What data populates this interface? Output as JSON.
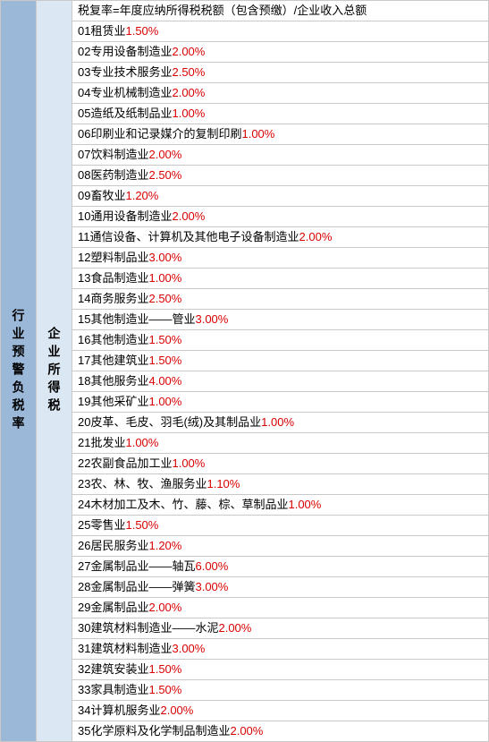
{
  "left_header": "行业预警负税率",
  "mid_header": "企业所得税",
  "formula": "税复率=年度应纳所得税税额（包含预缴）/企业收入总额",
  "rate_color": "#d90000",
  "border_color": "#c9c9c9",
  "left_bg": "#9bb8d9",
  "mid_bg": "#dbe7f3",
  "font_size": 13,
  "rows": [
    {
      "num": "01",
      "name": "租赁业",
      "rate": "1.50%"
    },
    {
      "num": "02",
      "name": "专用设备制造业",
      "rate": "2.00%"
    },
    {
      "num": "03",
      "name": "专业技术服务业",
      "rate": "2.50%"
    },
    {
      "num": "04",
      "name": "专业机械制造业",
      "rate": "2.00%"
    },
    {
      "num": "05",
      "name": "造纸及纸制品业",
      "rate": "1.00%"
    },
    {
      "num": "06",
      "name": "印刷业和记录媒介的复制印刷",
      "rate": "1.00%"
    },
    {
      "num": "07",
      "name": "饮料制造业",
      "rate": "2.00%"
    },
    {
      "num": "08",
      "name": "医药制造业",
      "rate": "2.50%"
    },
    {
      "num": "09",
      "name": "畜牧业",
      "rate": "1.20%"
    },
    {
      "num": "10",
      "name": "通用设备制造业",
      "rate": "2.00%"
    },
    {
      "num": "11",
      "name": "通信设备、计算机及其他电子设备制造业",
      "rate": "2.00%"
    },
    {
      "num": "12",
      "name": "塑料制品业",
      "rate": "3.00%"
    },
    {
      "num": "13",
      "name": "食品制造业",
      "rate": "1.00%"
    },
    {
      "num": "14",
      "name": "商务服务业",
      "rate": "2.50%"
    },
    {
      "num": "15",
      "name": "其他制造业——管业",
      "rate": "3.00%"
    },
    {
      "num": "16",
      "name": "其他制造业",
      "rate": "1.50%"
    },
    {
      "num": "17",
      "name": "其他建筑业",
      "rate": "1.50%"
    },
    {
      "num": "18",
      "name": "其他服务业",
      "rate": "4.00%"
    },
    {
      "num": "19",
      "name": "其他采矿业",
      "rate": "1.00%"
    },
    {
      "num": "20",
      "name": "皮革、毛皮、羽毛(绒)及其制品业",
      "rate": "1.00%"
    },
    {
      "num": "21",
      "name": "批发业",
      "rate": "1.00%"
    },
    {
      "num": "22",
      "name": "农副食品加工业",
      "rate": "1.00%"
    },
    {
      "num": "23",
      "name": "农、林、牧、渔服务业",
      "rate": "1.10%"
    },
    {
      "num": "24",
      "name": "木材加工及木、竹、藤、棕、草制品业",
      "rate": "1.00%"
    },
    {
      "num": "25",
      "name": "零售业",
      "rate": "1.50%"
    },
    {
      "num": "26",
      "name": "居民服务业",
      "rate": "1.20%"
    },
    {
      "num": "27",
      "name": "金属制品业——轴瓦",
      "rate": "6.00%"
    },
    {
      "num": "28",
      "name": "金属制品业——弹簧",
      "rate": "3.00%"
    },
    {
      "num": "29",
      "name": "金属制品业",
      "rate": "2.00%",
      "nospace": true
    },
    {
      "num": "30",
      "name": "建筑材料制造业——水泥",
      "rate": "2.00%"
    },
    {
      "num": "31",
      "name": "建筑材料制造业",
      "rate": "3.00%"
    },
    {
      "num": "32",
      "name": "建筑安装业",
      "rate": "1.50%"
    },
    {
      "num": "33",
      "name": "家具制造业",
      "rate": "1.50%"
    },
    {
      "num": "34",
      "name": "计算机服务业",
      "rate": "2.00%"
    },
    {
      "num": "35",
      "name": "化学原料及化学制品制造业",
      "rate": "2.00%"
    }
  ]
}
